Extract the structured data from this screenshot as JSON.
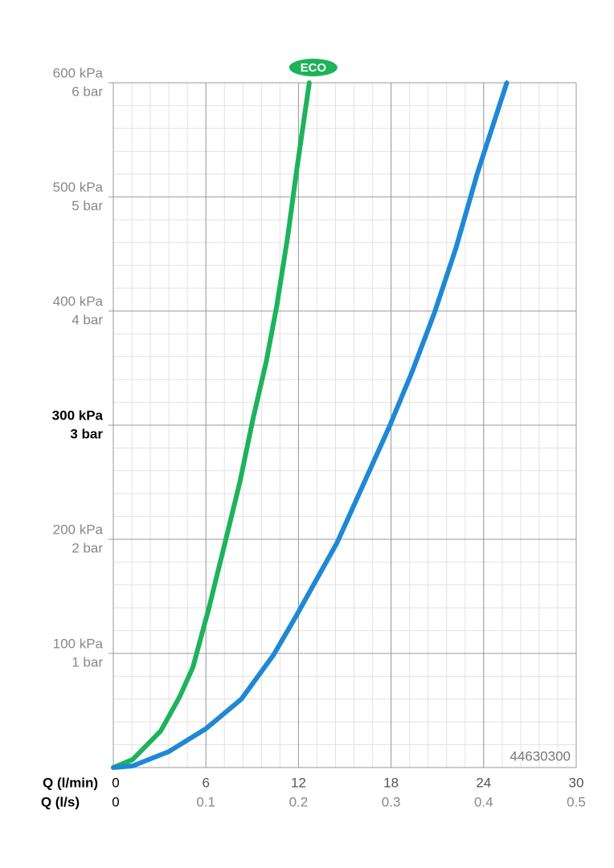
{
  "chart_data": {
    "type": "line",
    "x_label": "Q (l/min)",
    "x2_label": "Q (l/s)",
    "xlim": [
      0,
      30
    ],
    "xticks": [
      0,
      6,
      12,
      18,
      24,
      30
    ],
    "x2lim": [
      0,
      0.5
    ],
    "x2ticks": [
      0,
      0.1,
      0.2,
      0.3,
      0.4,
      0.5
    ],
    "ylim": [
      0,
      600
    ],
    "yticks": [
      {
        "value": 100,
        "label": "100 kPa"
      },
      {
        "value": 200,
        "label": "200 kPa"
      },
      {
        "value": 300,
        "label": "300 kPa"
      },
      {
        "value": 400,
        "label": "400 kPa"
      },
      {
        "value": 500,
        "label": "500 kPa"
      },
      {
        "value": 600,
        "label": "600 kPa"
      }
    ],
    "y2lim": [
      0,
      6
    ],
    "y2ticks": [
      {
        "value": 1,
        "label": "1 bar"
      },
      {
        "value": 2,
        "label": "2 bar"
      },
      {
        "value": 3,
        "label": "3 bar"
      },
      {
        "value": 4,
        "label": "4 bar"
      },
      {
        "value": 5,
        "label": "5 bar"
      },
      {
        "value": 6,
        "label": "6 bar"
      }
    ],
    "bold_ytick": 300,
    "grid": true,
    "minor_grid": {
      "x": 1.2,
      "y": 20
    },
    "annotation": "44630300",
    "series": [
      {
        "name": "ECO",
        "color": "#1db35a",
        "x": [
          0,
          1.25,
          3.07,
          4.3,
          5.16,
          6.2,
          7.24,
          8.2,
          9.06,
          9.9,
          10.6,
          11.3,
          11.9,
          12.7
        ],
        "values": [
          0,
          7,
          32,
          62,
          88,
          140,
          197,
          250,
          306,
          355,
          405,
          465,
          525,
          600
        ]
      },
      {
        "color": "#1f88d6",
        "x": [
          0,
          1.25,
          3.6,
          6,
          8.3,
          10.4,
          11.9,
          14.5,
          16.2,
          17.9,
          19.4,
          20.8,
          22.2,
          23.6,
          25.5
        ],
        "values": [
          0,
          1.4,
          14,
          34,
          60,
          99,
          134,
          197,
          248,
          299,
          348,
          398,
          455,
          521,
          600
        ]
      }
    ]
  }
}
